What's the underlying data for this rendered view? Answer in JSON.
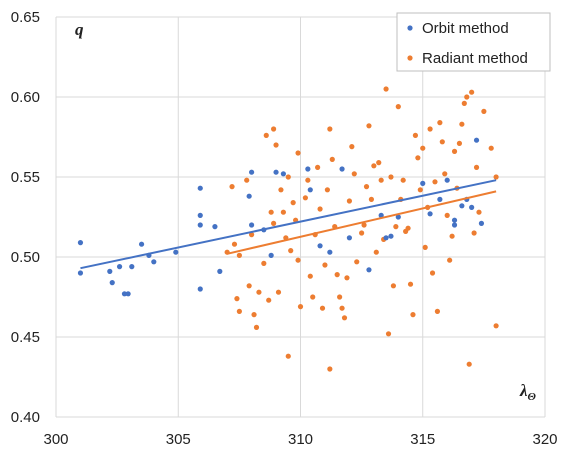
{
  "chart_data": {
    "type": "scatter",
    "title": "",
    "xlabel": "λ",
    "xlabel_subscript": "Θ",
    "ylabel": "q",
    "xlim": [
      300,
      320
    ],
    "ylim": [
      0.4,
      0.65
    ],
    "x_ticks": [
      "300",
      "305",
      "310",
      "315",
      "320"
    ],
    "y_ticks": [
      "0.40",
      "0.45",
      "0.50",
      "0.55",
      "0.60",
      "0.65"
    ],
    "grid": true,
    "legend_position": "top-right",
    "series": [
      {
        "name": "Orbit method",
        "color": "#4472c4",
        "points": [
          [
            301.0,
            0.509
          ],
          [
            301.0,
            0.49
          ],
          [
            302.2,
            0.491
          ],
          [
            302.3,
            0.484
          ],
          [
            302.6,
            0.494
          ],
          [
            302.8,
            0.477
          ],
          [
            302.95,
            0.477
          ],
          [
            303.1,
            0.494
          ],
          [
            303.5,
            0.508
          ],
          [
            303.8,
            0.501
          ],
          [
            304.0,
            0.497
          ],
          [
            304.9,
            0.503
          ],
          [
            305.9,
            0.543
          ],
          [
            305.9,
            0.526
          ],
          [
            305.9,
            0.52
          ],
          [
            305.9,
            0.48
          ],
          [
            306.5,
            0.519
          ],
          [
            306.7,
            0.491
          ],
          [
            307.9,
            0.538
          ],
          [
            308.0,
            0.553
          ],
          [
            308.0,
            0.52
          ],
          [
            308.5,
            0.517
          ],
          [
            308.8,
            0.501
          ],
          [
            309.0,
            0.553
          ],
          [
            309.3,
            0.552
          ],
          [
            310.3,
            0.555
          ],
          [
            310.4,
            0.542
          ],
          [
            310.8,
            0.507
          ],
          [
            311.2,
            0.503
          ],
          [
            311.7,
            0.555
          ],
          [
            312.0,
            0.512
          ],
          [
            312.8,
            0.492
          ],
          [
            313.3,
            0.526
          ],
          [
            313.5,
            0.512
          ],
          [
            313.7,
            0.513
          ],
          [
            314.0,
            0.525
          ],
          [
            315.0,
            0.546
          ],
          [
            315.3,
            0.527
          ],
          [
            315.7,
            0.536
          ],
          [
            316.0,
            0.548
          ],
          [
            316.3,
            0.52
          ],
          [
            316.6,
            0.532
          ],
          [
            316.8,
            0.536
          ],
          [
            317.0,
            0.531
          ],
          [
            317.2,
            0.573
          ],
          [
            317.4,
            0.521
          ],
          [
            316.3,
            0.523
          ]
        ],
        "trendline": [
          [
            301.0,
            0.493
          ],
          [
            318.0,
            0.548
          ]
        ]
      },
      {
        "name": "Radiant method",
        "color": "#ed7d31",
        "points": [
          [
            307.0,
            0.503
          ],
          [
            307.2,
            0.544
          ],
          [
            307.3,
            0.508
          ],
          [
            307.4,
            0.474
          ],
          [
            307.5,
            0.466
          ],
          [
            307.5,
            0.501
          ],
          [
            307.8,
            0.548
          ],
          [
            307.9,
            0.482
          ],
          [
            308.0,
            0.514
          ],
          [
            308.1,
            0.464
          ],
          [
            308.2,
            0.456
          ],
          [
            308.3,
            0.478
          ],
          [
            308.5,
            0.496
          ],
          [
            308.6,
            0.576
          ],
          [
            308.7,
            0.473
          ],
          [
            308.8,
            0.528
          ],
          [
            308.9,
            0.58
          ],
          [
            308.9,
            0.521
          ],
          [
            309.0,
            0.57
          ],
          [
            309.1,
            0.478
          ],
          [
            309.2,
            0.542
          ],
          [
            309.3,
            0.528
          ],
          [
            309.4,
            0.512
          ],
          [
            309.5,
            0.438
          ],
          [
            309.5,
            0.55
          ],
          [
            309.6,
            0.504
          ],
          [
            309.7,
            0.534
          ],
          [
            309.8,
            0.523
          ],
          [
            309.9,
            0.565
          ],
          [
            309.9,
            0.498
          ],
          [
            310.0,
            0.469
          ],
          [
            310.2,
            0.537
          ],
          [
            310.3,
            0.548
          ],
          [
            310.4,
            0.488
          ],
          [
            310.5,
            0.475
          ],
          [
            310.6,
            0.514
          ],
          [
            310.7,
            0.556
          ],
          [
            310.8,
            0.53
          ],
          [
            310.9,
            0.468
          ],
          [
            311.0,
            0.495
          ],
          [
            311.1,
            0.542
          ],
          [
            311.2,
            0.58
          ],
          [
            311.2,
            0.43
          ],
          [
            311.3,
            0.561
          ],
          [
            311.4,
            0.519
          ],
          [
            311.5,
            0.489
          ],
          [
            311.6,
            0.475
          ],
          [
            311.7,
            0.468
          ],
          [
            311.8,
            0.462
          ],
          [
            311.9,
            0.487
          ],
          [
            312.0,
            0.535
          ],
          [
            312.1,
            0.569
          ],
          [
            312.2,
            0.552
          ],
          [
            312.3,
            0.497
          ],
          [
            312.5,
            0.515
          ],
          [
            312.6,
            0.52
          ],
          [
            312.7,
            0.544
          ],
          [
            312.8,
            0.582
          ],
          [
            312.9,
            0.536
          ],
          [
            313.0,
            0.557
          ],
          [
            313.1,
            0.503
          ],
          [
            313.2,
            0.559
          ],
          [
            313.3,
            0.548
          ],
          [
            313.4,
            0.511
          ],
          [
            313.5,
            0.605
          ],
          [
            313.6,
            0.452
          ],
          [
            313.7,
            0.55
          ],
          [
            313.8,
            0.482
          ],
          [
            313.9,
            0.519
          ],
          [
            314.0,
            0.594
          ],
          [
            314.1,
            0.536
          ],
          [
            314.2,
            0.548
          ],
          [
            314.3,
            0.516
          ],
          [
            314.4,
            0.518
          ],
          [
            314.5,
            0.483
          ],
          [
            314.6,
            0.464
          ],
          [
            314.7,
            0.576
          ],
          [
            314.8,
            0.562
          ],
          [
            314.9,
            0.542
          ],
          [
            315.0,
            0.568
          ],
          [
            315.1,
            0.506
          ],
          [
            315.2,
            0.531
          ],
          [
            315.3,
            0.58
          ],
          [
            315.4,
            0.49
          ],
          [
            315.5,
            0.547
          ],
          [
            315.6,
            0.466
          ],
          [
            315.7,
            0.584
          ],
          [
            315.8,
            0.572
          ],
          [
            315.9,
            0.552
          ],
          [
            316.0,
            0.526
          ],
          [
            316.1,
            0.498
          ],
          [
            316.2,
            0.513
          ],
          [
            316.3,
            0.566
          ],
          [
            316.4,
            0.543
          ],
          [
            316.5,
            0.571
          ],
          [
            316.6,
            0.583
          ],
          [
            316.7,
            0.596
          ],
          [
            316.8,
            0.6
          ],
          [
            316.9,
            0.433
          ],
          [
            317.0,
            0.603
          ],
          [
            317.1,
            0.515
          ],
          [
            317.2,
            0.556
          ],
          [
            317.3,
            0.528
          ],
          [
            317.5,
            0.591
          ],
          [
            317.8,
            0.568
          ],
          [
            318.0,
            0.457
          ],
          [
            318.0,
            0.55
          ]
        ],
        "trendline": [
          [
            307.0,
            0.502
          ],
          [
            318.0,
            0.541
          ]
        ]
      }
    ]
  }
}
